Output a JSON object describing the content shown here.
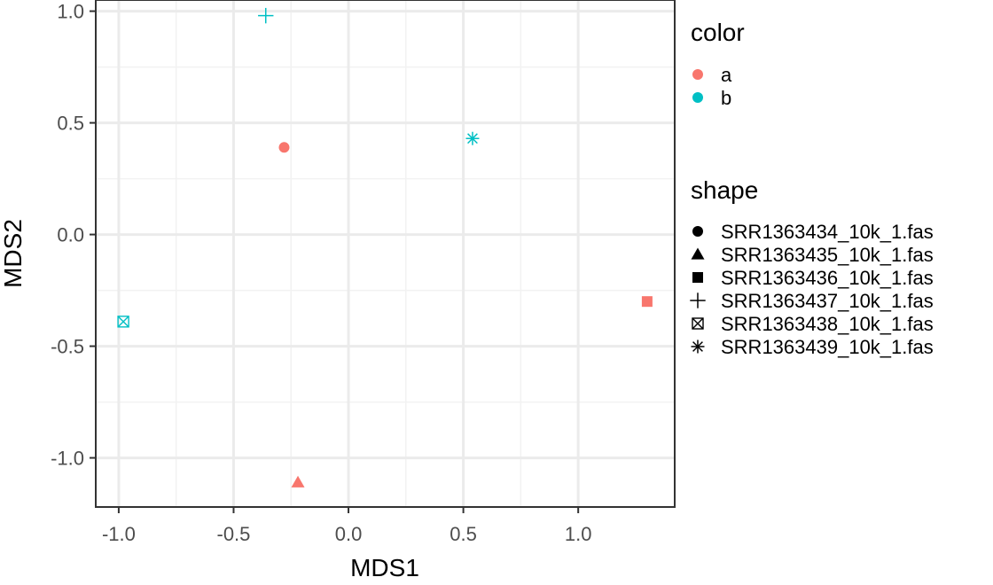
{
  "chart_data": {
    "type": "scatter",
    "title": "",
    "xlabel": "MDS1",
    "ylabel": "MDS2",
    "xlim": [
      -1.1,
      1.42
    ],
    "ylim": [
      -1.22,
      1.05
    ],
    "xticks": [
      -1.0,
      -0.5,
      0.0,
      0.5,
      1.0
    ],
    "xtick_labels": [
      "-1.0",
      "-0.5",
      "0.0",
      "0.5",
      "1.0"
    ],
    "yticks": [
      -1.0,
      -0.5,
      0.0,
      0.5,
      1.0
    ],
    "ytick_labels": [
      "-1.0",
      "-0.5",
      "0.0",
      "0.5",
      "1.0"
    ],
    "grid": true,
    "legend_placement": "right",
    "points": [
      {
        "x": -0.28,
        "y": 0.39,
        "color_group": "a",
        "shape": "SRR1363434_10k_1.fas"
      },
      {
        "x": -0.22,
        "y": -1.11,
        "color_group": "a",
        "shape": "SRR1363435_10k_1.fas"
      },
      {
        "x": 1.3,
        "y": -0.3,
        "color_group": "a",
        "shape": "SRR1363436_10k_1.fas"
      },
      {
        "x": -0.36,
        "y": 0.98,
        "color_group": "b",
        "shape": "SRR1363437_10k_1.fas"
      },
      {
        "x": -0.98,
        "y": -0.39,
        "color_group": "b",
        "shape": "SRR1363438_10k_1.fas"
      },
      {
        "x": 0.54,
        "y": 0.43,
        "color_group": "b",
        "shape": "SRR1363439_10k_1.fas"
      }
    ],
    "legends": {
      "color": {
        "title": "color",
        "entries": [
          {
            "label": "a",
            "color": "#F8766D"
          },
          {
            "label": "b",
            "color": "#00BFC4"
          }
        ]
      },
      "shape": {
        "title": "shape",
        "entries": [
          {
            "label": "SRR1363434_10k_1.fas",
            "marker": "circle"
          },
          {
            "label": "SRR1363435_10k_1.fas",
            "marker": "triangle"
          },
          {
            "label": "SRR1363436_10k_1.fas",
            "marker": "square"
          },
          {
            "label": "SRR1363437_10k_1.fas",
            "marker": "plus"
          },
          {
            "label": "SRR1363438_10k_1.fas",
            "marker": "boxed-x"
          },
          {
            "label": "SRR1363439_10k_1.fas",
            "marker": "asterisk"
          }
        ]
      }
    },
    "colors": {
      "grid_major": "#EBEBEB",
      "grid_minor": "#F2F2F2",
      "panel_border": "#333333",
      "tick_text": "#4D4D4D"
    }
  }
}
